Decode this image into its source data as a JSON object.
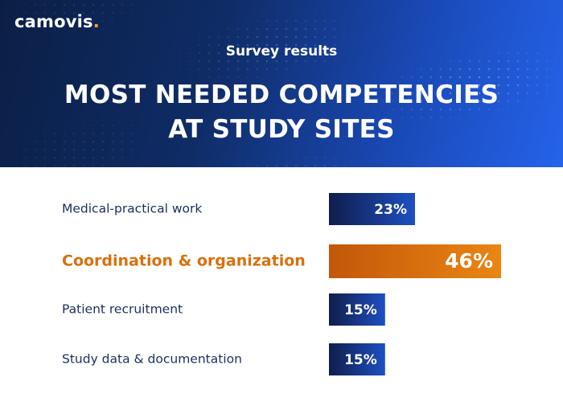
{
  "brand": {
    "name": "camovis",
    "dot": "."
  },
  "header": {
    "subtitle": "Survey results",
    "title_line1": "MOST NEEDED COMPETENCIES",
    "title_line2": "AT STUDY SITES"
  },
  "colors": {
    "header_dark": "#0b1f45",
    "header_light": "#2563eb",
    "bar_dark": "#0f1e4a",
    "bar_light": "#1e4fc2",
    "highlight_dark": "#c2570a",
    "highlight_light": "#ea8612",
    "label_default": "#1b2f5e",
    "label_highlight": "#d9700e",
    "brand_dot": "#f5a623"
  },
  "chart_data": {
    "type": "bar",
    "orientation": "horizontal",
    "title": "MOST NEEDED COMPETENCIES AT STUDY SITES",
    "subtitle": "Survey results",
    "categories": [
      "Medical-practical work",
      "Coordination & organization",
      "Patient recruitment",
      "Study data & documentation"
    ],
    "values": [
      23,
      46,
      15,
      15
    ],
    "value_labels": [
      "23%",
      "46%",
      "15%",
      "15%"
    ],
    "unit": "%",
    "highlight": [
      false,
      true,
      false,
      false
    ],
    "xlim": [
      0,
      46
    ],
    "grid": false,
    "legend": "none"
  }
}
